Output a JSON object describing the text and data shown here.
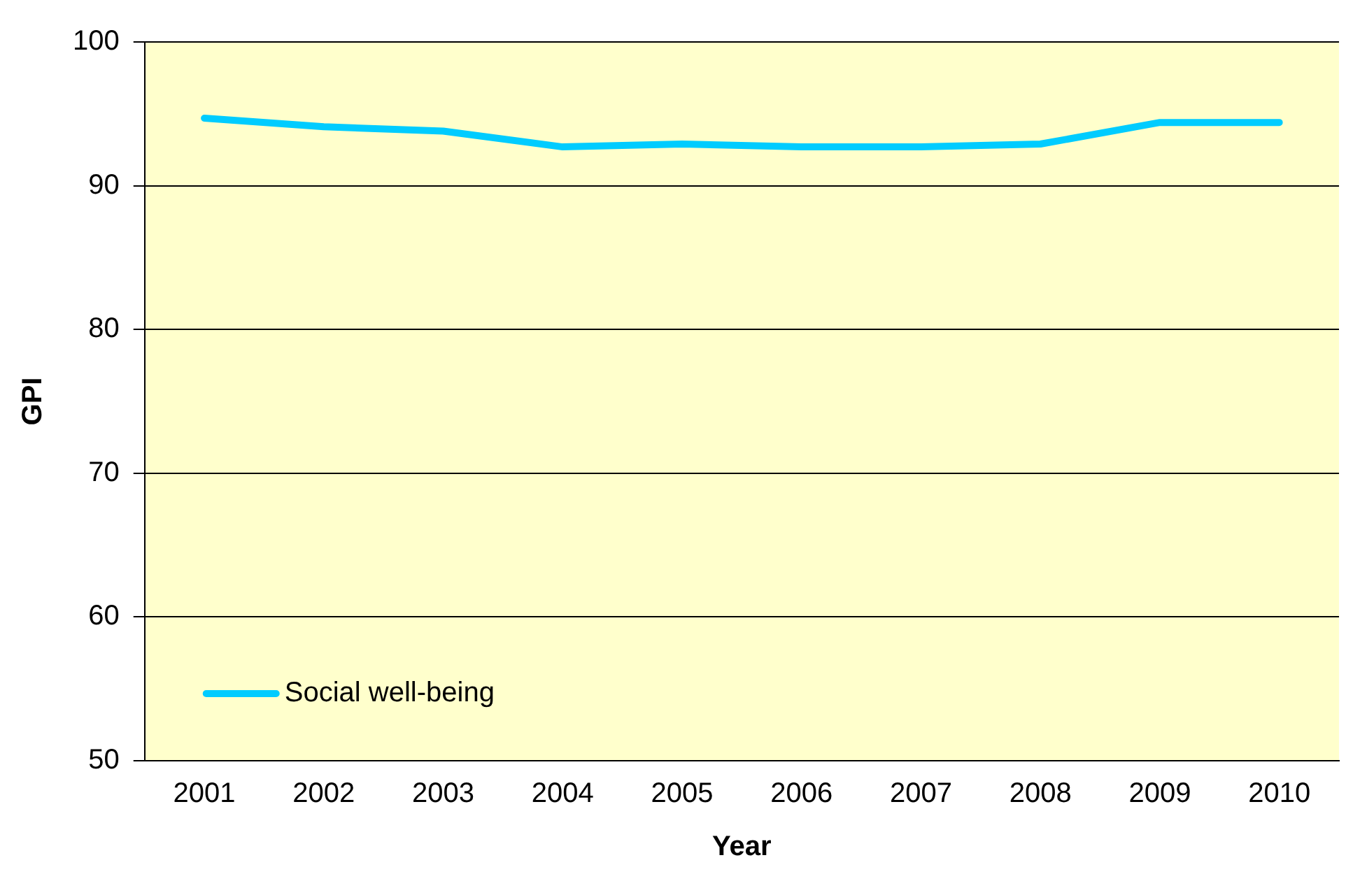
{
  "chart_data": {
    "type": "line",
    "xlabel": "Year",
    "ylabel": "GPI",
    "categories": [
      "2001",
      "2002",
      "2003",
      "2004",
      "2005",
      "2006",
      "2007",
      "2008",
      "2009",
      "2010"
    ],
    "series": [
      {
        "name": "Social well-being",
        "color": "#00ccff",
        "values": [
          94.7,
          94.1,
          93.8,
          92.7,
          92.9,
          92.7,
          92.7,
          92.9,
          94.4,
          94.4
        ]
      }
    ],
    "ylim": [
      50,
      100
    ],
    "yticks": [
      50,
      60,
      70,
      80,
      90,
      100
    ],
    "grid": "y",
    "legend": "bottom left",
    "marker": "none"
  }
}
